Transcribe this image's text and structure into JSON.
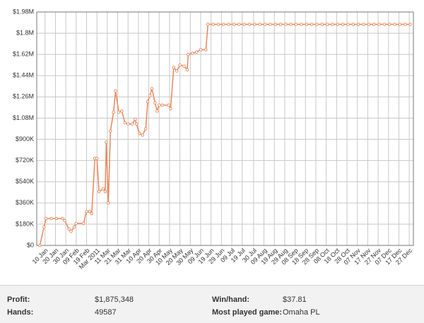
{
  "chart_data": {
    "type": "line",
    "xlim": [
      "02 Jan",
      "31 Dec"
    ],
    "xticks": [
      "10 Jan",
      "20 Jan",
      "30 Jan",
      "09 Feb",
      "19 Feb",
      {
        "value": "01 Mar",
        "label": "Mar 2011"
      },
      "11 Mar",
      "21 Mar",
      "31 Mar",
      "10 Apr",
      "20 Apr",
      "30 Apr",
      "10 May",
      "20 May",
      "30 May",
      "09 Jun",
      "19 Jun",
      "29 Jun",
      "09 Jul",
      "19 Jul",
      "30 Jul",
      "09 Aug",
      "19 Aug",
      "29 Aug",
      "08 Sep",
      "18 Sep",
      "28 Sep",
      "08 Oct",
      "18 Oct",
      "28 Oct",
      "07 Nov",
      "17 Nov",
      "27 Nov",
      "07 Dec",
      "17 Dec",
      "27 Dec"
    ],
    "ylim": [
      0,
      1980000
    ],
    "yticks": [
      {
        "value": 0,
        "label": "$0"
      },
      {
        "value": 180000,
        "label": "$180K"
      },
      {
        "value": 360000,
        "label": "$360K"
      },
      {
        "value": 540000,
        "label": "$540K"
      },
      {
        "value": 720000,
        "label": "$720K"
      },
      {
        "value": 900000,
        "label": "$900K"
      },
      {
        "value": 1080000,
        "label": "$1.08M"
      },
      {
        "value": 1260000,
        "label": "$1.26M"
      },
      {
        "value": 1440000,
        "label": "$1.44M"
      },
      {
        "value": 1620000,
        "label": "$1.62M"
      },
      {
        "value": 1800000,
        "label": "$1.8M"
      },
      {
        "value": 1980000,
        "label": "$1.98M"
      }
    ],
    "grid": true,
    "series": [
      {
        "color": "#e8875a",
        "x": [
          "05 Jan",
          "09 Jan",
          "11 Jan",
          "16 Jan",
          "21 Jan",
          "27 Jan",
          "29 Jan",
          "02 Feb",
          "04 Feb",
          "07 Feb",
          "09 Feb",
          "16 Feb",
          "19 Feb",
          "22 Feb",
          "24 Feb",
          "27 Feb",
          "01 Mar",
          "03 Mar",
          "07 Mar",
          "09 Mar",
          "10 Mar",
          "12 Mar",
          "14 Mar",
          "17 Mar",
          "19 Mar",
          "22 Mar",
          "25 Mar",
          "28 Mar",
          "31 Mar",
          "04 Apr",
          "07 Apr",
          "08 Apr",
          "11 Apr",
          "14 Apr",
          "17 Apr",
          "19 Apr",
          "21 Apr",
          "23 Apr",
          "26 Apr",
          "28 Apr",
          "30 Apr",
          "03 May",
          "09 May",
          "11 May",
          "14 May",
          "17 May",
          "20 May",
          "24 May",
          "27 May",
          "28 May",
          "01 Jun",
          "05 Jun",
          "09 Jun",
          "14 Jun",
          "16 Jun",
          "21 Jun",
          "26 Jun",
          "01 Jul",
          "06 Jul",
          "11 Jul",
          "16 Jul",
          "21 Jul",
          "26 Jul",
          "31 Jul",
          "05 Aug",
          "10 Aug",
          "15 Aug",
          "20 Aug",
          "25 Aug",
          "30 Aug",
          "04 Sep",
          "09 Sep",
          "14 Sep",
          "19 Sep",
          "24 Sep",
          "29 Sep",
          "04 Oct",
          "09 Oct",
          "14 Oct",
          "19 Oct",
          "24 Oct",
          "29 Oct",
          "03 Nov",
          "08 Nov",
          "13 Nov",
          "18 Nov",
          "23 Nov",
          "28 Nov",
          "03 Dec",
          "08 Dec",
          "13 Dec",
          "18 Dec",
          "23 Dec",
          "28 Dec"
        ],
        "values": [
          0,
          156000,
          228000,
          228000,
          228000,
          228000,
          210000,
          138000,
          120000,
          156000,
          186000,
          186000,
          288000,
          288000,
          270000,
          738000,
          738000,
          456000,
          480000,
          456000,
          876000,
          360000,
          970000,
          1130000,
          1310000,
          1130000,
          1140000,
          1040000,
          1030000,
          1030000,
          1070000,
          1030000,
          950000,
          936000,
          990000,
          1220000,
          1270000,
          1330000,
          1210000,
          1140000,
          1190000,
          1190000,
          1190000,
          1160000,
          1510000,
          1480000,
          1530000,
          1520000,
          1490000,
          1620000,
          1630000,
          1640000,
          1660000,
          1660000,
          1875348,
          1875348,
          1875348,
          1875348,
          1875348,
          1875348,
          1875348,
          1875348,
          1875348,
          1875348,
          1875348,
          1875348,
          1875348,
          1875348,
          1875348,
          1875348,
          1875348,
          1875348,
          1875348,
          1875348,
          1875348,
          1875348,
          1875348,
          1875348,
          1875348,
          1875348,
          1875348,
          1875348,
          1875348,
          1875348,
          1875348,
          1875348,
          1875348,
          1875348,
          1875348,
          1875348,
          1875348,
          1875348,
          1875348,
          1875348
        ]
      }
    ]
  },
  "stats": [
    {
      "label": "Profit:",
      "value": "$1,875,348"
    },
    {
      "label": "Win/hand:",
      "value": "$37.81"
    },
    {
      "label": "Hands:",
      "value": "49587"
    },
    {
      "label": "Most played game:",
      "value": "Omaha PL"
    }
  ]
}
